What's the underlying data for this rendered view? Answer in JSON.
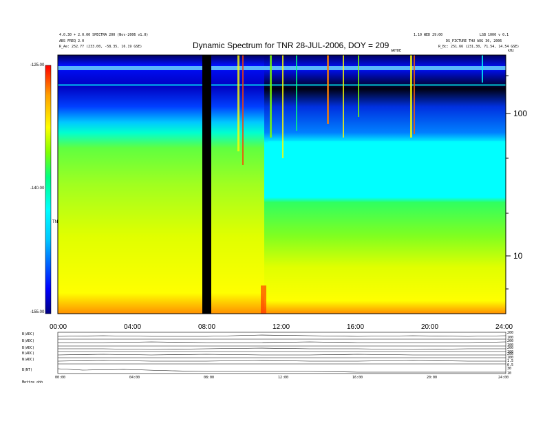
{
  "header": {
    "left_line1": "4.0.30 + 2.0.00 SPECTRA 200 (Nov-2006 v1.0)",
    "left_line2": "ABS FREQ 2.0",
    "left_line3": "R_Ae:  252.77 (233.00, -58.35, 16.19 GSE)",
    "right_line1": "1.10 WED 29:00",
    "right_line2": "DS_PICTURE THU AUG 30, 2006",
    "right_line3": "R_Bc:  251.66 (231.30, 71.54, 14.54 GSE)",
    "right_unit_top": "kHz",
    "right_small": "GRYDE",
    "right_corner": "LSB 1000 v 0.1"
  },
  "chart_data": {
    "type": "heatmap",
    "title": "Dynamic Spectrum for TNR 28-JUL-2006, DOY = 209",
    "colorbar": {
      "label": "TNR",
      "ticks": [
        "-125.00",
        "-140.00",
        "-155.00"
      ],
      "range": [
        -155,
        -125
      ],
      "colors": [
        "#000080",
        "#0000ff",
        "#00c8ff",
        "#00ffff",
        "#00ff80",
        "#80ff00",
        "#ffff00",
        "#ffa000",
        "#ff0000",
        "#d00000"
      ]
    },
    "x_axis": {
      "ticks": [
        "00:00",
        "04:00",
        "08:00",
        "12:00",
        "16:00",
        "20:00",
        "24:00"
      ],
      "range_hours": [
        0,
        24
      ]
    },
    "y_axis_right": {
      "scale": "log",
      "ticks": [
        "100",
        "10"
      ],
      "unit": "kHz"
    },
    "data_gap_hours": [
      7.8,
      8.2
    ],
    "bottom_panels": {
      "labels": [
        "B(ADC)",
        "B(ADC)",
        "B(ADC)",
        "B(ADC)",
        "N(ADC)",
        "B(NT)"
      ],
      "right_labels": [
        "200",
        "100",
        "200",
        "100",
        "200",
        "100",
        "200",
        "100",
        "1.5",
        "0.5",
        "30",
        "10"
      ],
      "x_ticks": [
        "00:00",
        "04:00",
        "08:00",
        "12:00",
        "16:00",
        "20:00",
        "24:00"
      ],
      "footer": "Mettre   ohh"
    }
  }
}
